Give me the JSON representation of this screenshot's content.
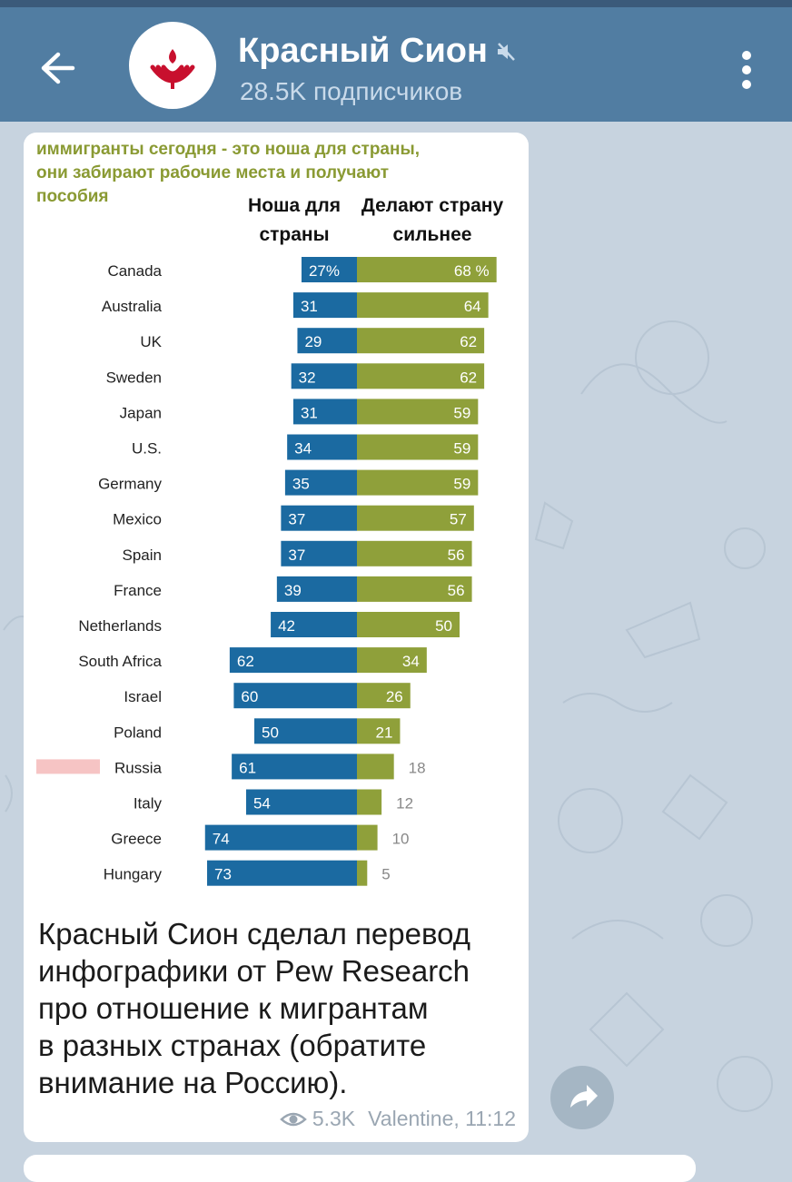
{
  "header": {
    "title": "Красный Сион",
    "subtitle": "28.5K подписчиков"
  },
  "message": {
    "caption_lines": [
      "Красный Сион сделал перевод",
      "инфографики от Pew Research",
      "про отношение к мигрантам",
      "в разных странах (обратите",
      "внимание на Россию)."
    ],
    "views": "5.3K",
    "author_time": "Valentine, 11:12"
  },
  "colors": {
    "header_bg": "#517da2",
    "burden": "#1b6aa1",
    "stronger": "#8fa03a",
    "chart_title": "#8a9a33",
    "highlight": "#f6c4c4"
  },
  "chart_data": {
    "type": "bar",
    "title": "иммигранты сегодня - это ноша для страны, они забирают рабочие места и получают пособия",
    "title_lines": [
      "иммигранты сегодня - это ноша для страны,",
      "они забирают рабочие места и получают",
      "пособия"
    ],
    "column_headers": {
      "burden": [
        "Ноша для",
        "страны"
      ],
      "stronger": [
        "Делают страну",
        "сильнее"
      ]
    },
    "categories": [
      "Canada",
      "Australia",
      "UK",
      "Sweden",
      "Japan",
      "U.S.",
      "Germany",
      "Mexico",
      "Spain",
      "France",
      "Netherlands",
      "South Africa",
      "Israel",
      "Poland",
      "Russia",
      "Italy",
      "Greece",
      "Hungary"
    ],
    "series": [
      {
        "name": "Ноша для страны",
        "values": [
          27,
          31,
          29,
          32,
          31,
          34,
          35,
          37,
          37,
          39,
          42,
          62,
          60,
          50,
          61,
          54,
          74,
          73
        ]
      },
      {
        "name": "Делают страну сильнее",
        "values": [
          68,
          64,
          62,
          62,
          59,
          59,
          59,
          57,
          56,
          56,
          50,
          34,
          26,
          21,
          18,
          12,
          10,
          5
        ]
      }
    ],
    "value_labels_burden": [
      "27%",
      "31",
      "29",
      "32",
      "31",
      "34",
      "35",
      "37",
      "37",
      "39",
      "42",
      "62",
      "60",
      "50",
      "61",
      "54",
      "74",
      "73"
    ],
    "value_labels_stronger": [
      "68 %",
      "64",
      "62",
      "62",
      "59",
      "59",
      "59",
      "57",
      "56",
      "56",
      "50",
      "34",
      "26",
      "21",
      "18",
      "12",
      "10",
      "5"
    ],
    "highlighted_category": "Russia",
    "layout": "diverging horizontal bars"
  }
}
